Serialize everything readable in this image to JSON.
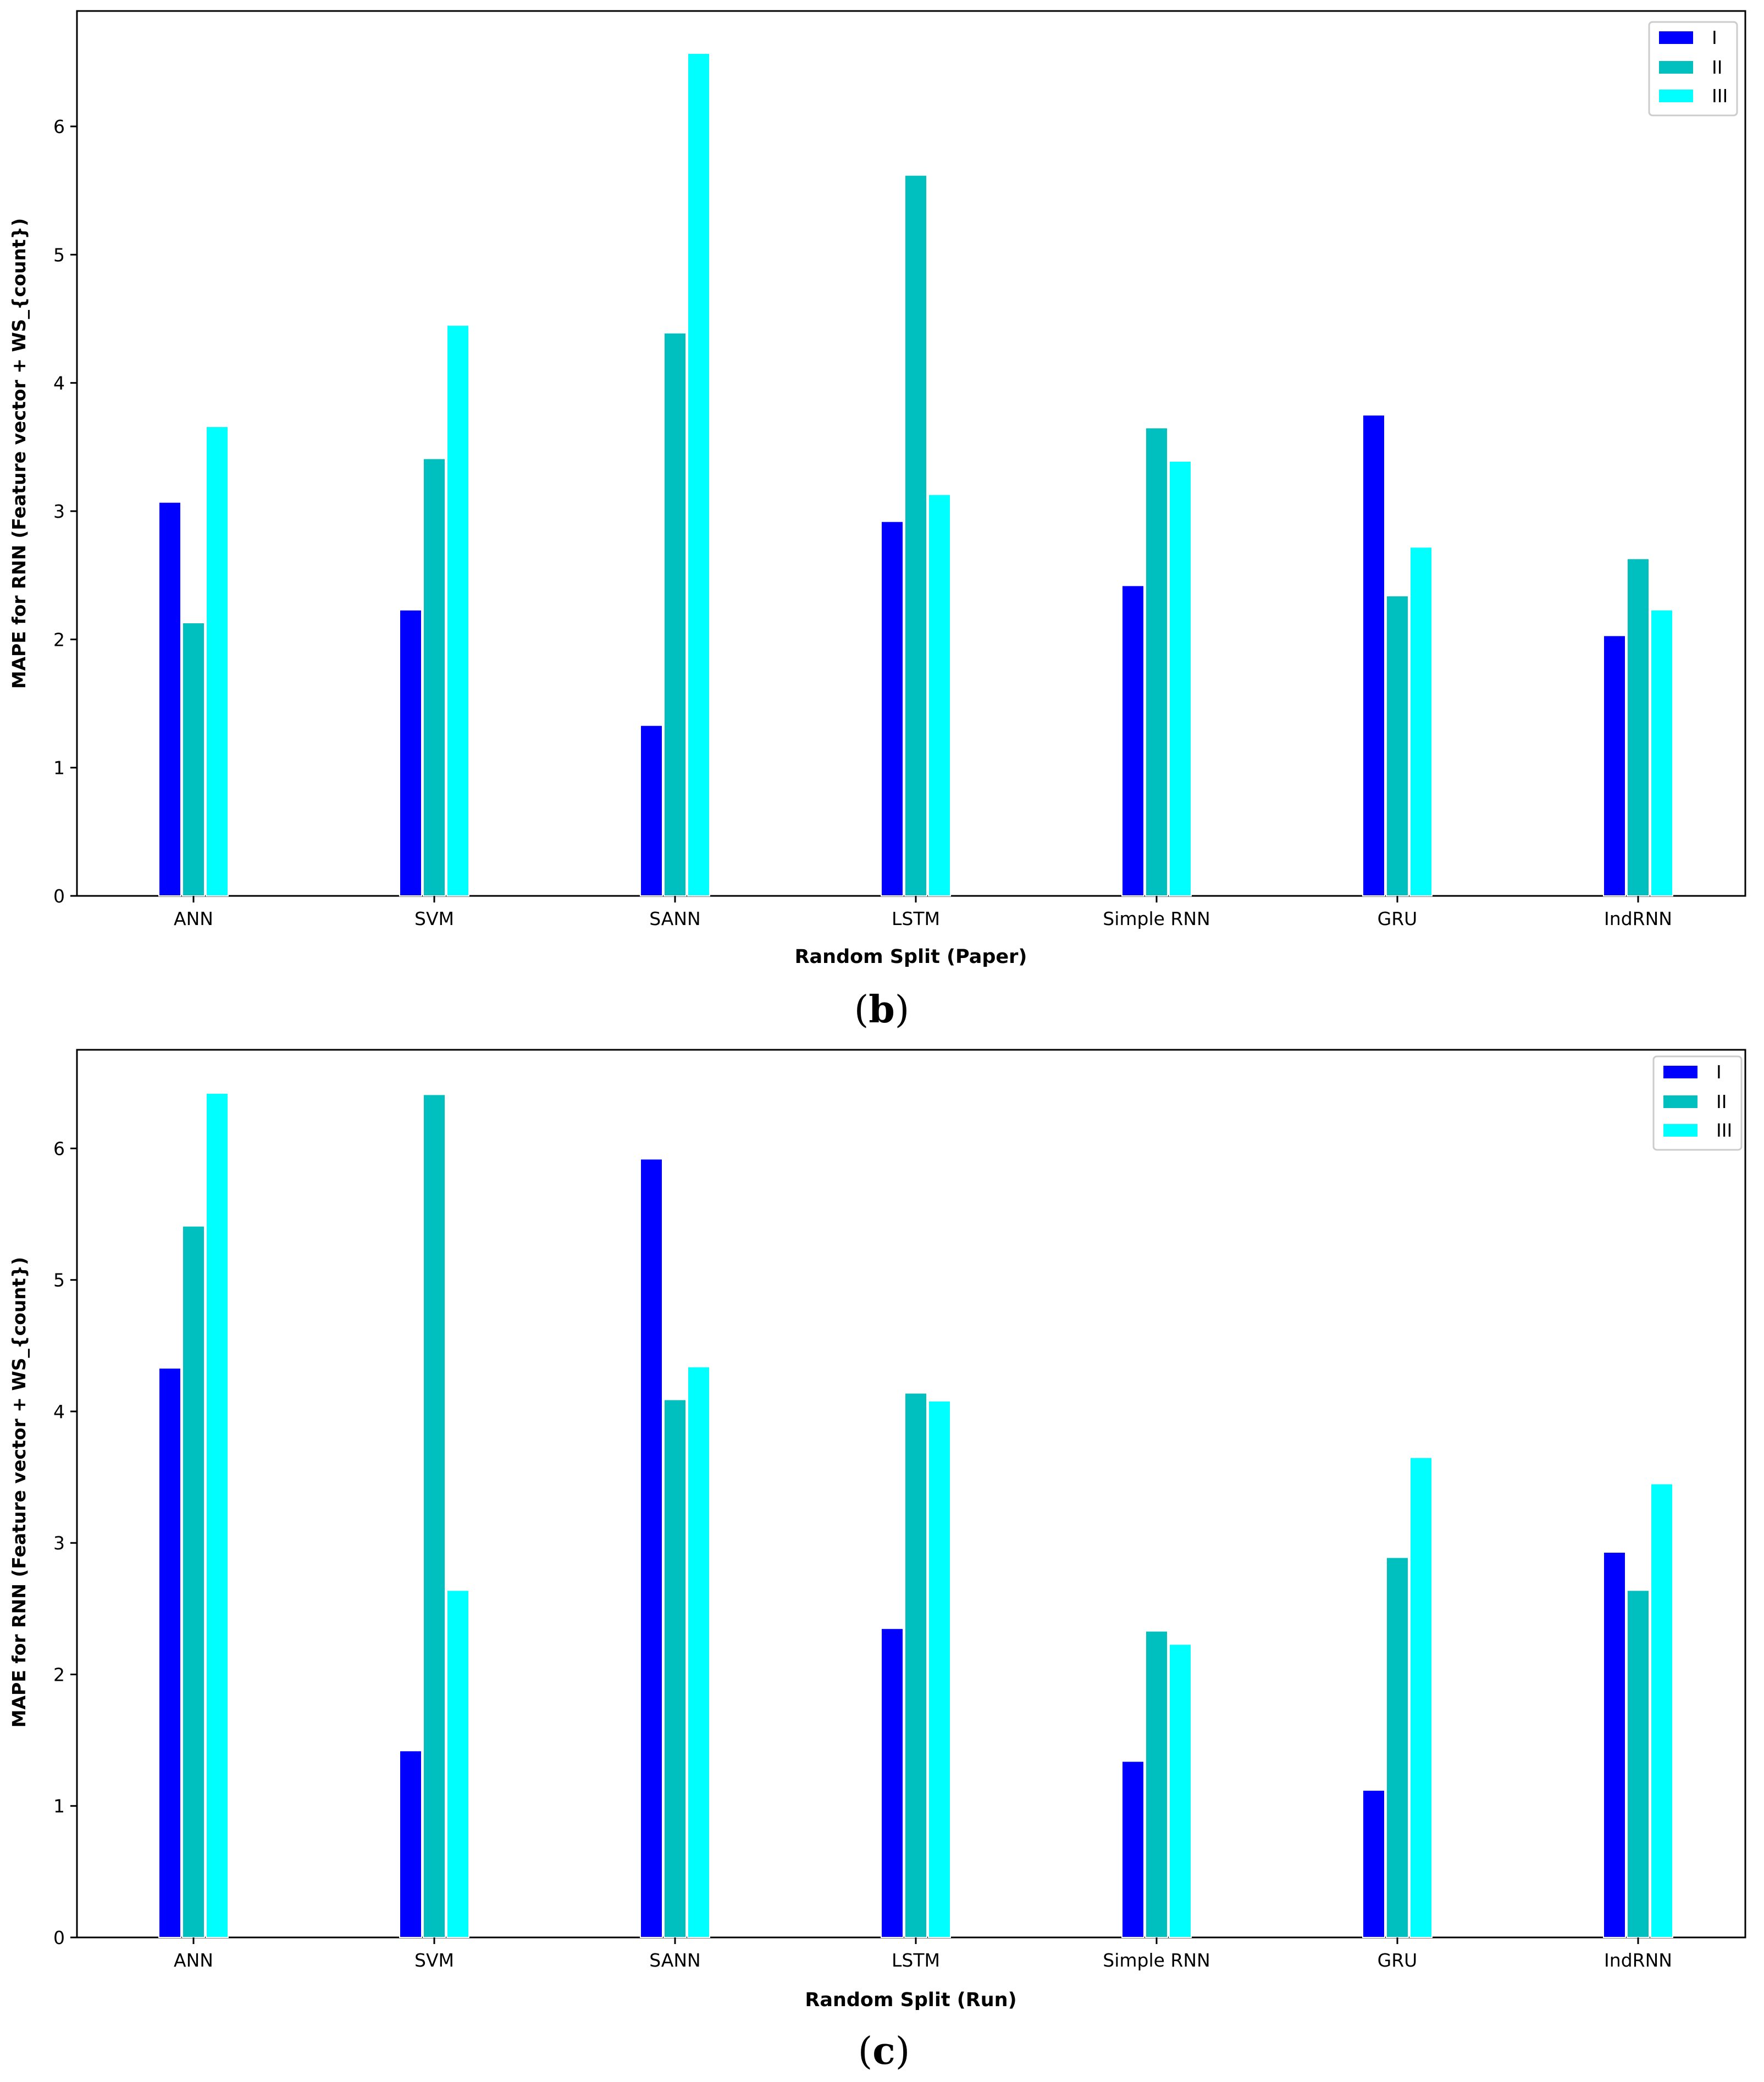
{
  "colors": {
    "I": "#0000ff",
    "II": "#00bfbf",
    "III": "#00ffff"
  },
  "chart_data": [
    {
      "type": "bar",
      "panel_label": "b",
      "categories": [
        "ANN",
        "SVM",
        "SANN",
        "LSTM",
        "Simple RNN",
        "GRU",
        "IndRNN"
      ],
      "series": [
        {
          "name": "I",
          "values": [
            3.07,
            2.23,
            1.33,
            2.92,
            2.42,
            3.75,
            2.03
          ]
        },
        {
          "name": "II",
          "values": [
            2.13,
            3.41,
            4.39,
            5.62,
            3.65,
            2.34,
            2.63
          ]
        },
        {
          "name": "III",
          "values": [
            3.66,
            4.45,
            6.57,
            3.13,
            3.39,
            2.72,
            2.23
          ]
        }
      ],
      "xlabel": "Random Split (Paper)",
      "ylabel": "MAPE for RNN (Feature vector + WS_{count})",
      "ylim": [
        0,
        6.9
      ],
      "yticks": [
        0,
        1,
        2,
        3,
        4,
        5,
        6
      ],
      "legend": "top-right",
      "grid": false
    },
    {
      "type": "bar",
      "panel_label": "c",
      "categories": [
        "ANN",
        "SVM",
        "SANN",
        "LSTM",
        "Simple RNN",
        "GRU",
        "IndRNN"
      ],
      "series": [
        {
          "name": "I",
          "values": [
            4.33,
            1.42,
            5.92,
            2.35,
            1.34,
            1.12,
            2.93
          ]
        },
        {
          "name": "II",
          "values": [
            5.41,
            6.41,
            4.09,
            4.14,
            2.33,
            2.89,
            2.64
          ]
        },
        {
          "name": "III",
          "values": [
            6.42,
            2.64,
            4.34,
            4.08,
            2.23,
            3.65,
            3.45
          ]
        }
      ],
      "xlabel": "Random Split (Run)",
      "ylabel": "MAPE for RNN (Feature vector + WS_{count})",
      "ylim": [
        0,
        6.75
      ],
      "yticks": [
        0,
        1,
        2,
        3,
        4,
        5,
        6
      ],
      "legend": "top-right",
      "grid": false
    }
  ]
}
